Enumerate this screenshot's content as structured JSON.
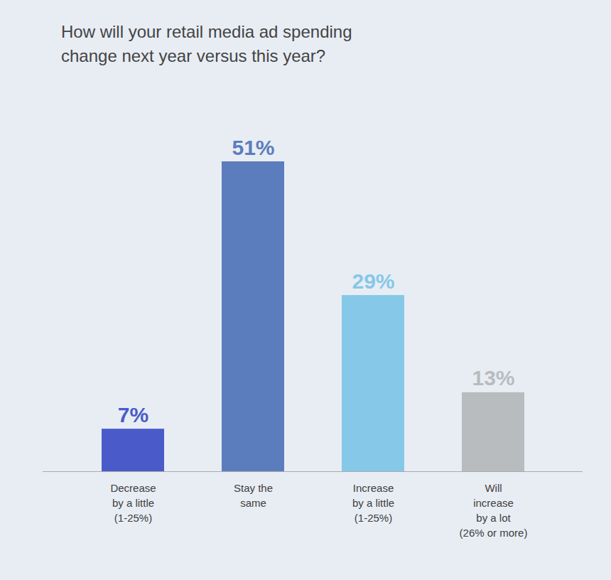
{
  "chart_data": {
    "type": "bar",
    "title": "How will your retail media ad spending\nchange next year versus this year?",
    "categories": [
      "Decrease\nby a little\n(1-25%)",
      "Stay the\nsame",
      "Increase\nby a little\n(1-25%)",
      "Will\nincrease\nby a lot\n(26% or more)"
    ],
    "values": [
      7,
      51,
      29,
      13
    ],
    "value_labels": [
      "7%",
      "51%",
      "29%",
      "13%"
    ],
    "colors": [
      "#4a5bc9",
      "#5b7dbd",
      "#86c8e8",
      "#b8bcbe"
    ],
    "ylim": [
      0,
      62
    ],
    "data_labels": true,
    "tick_labels": "x",
    "grid": false
  }
}
